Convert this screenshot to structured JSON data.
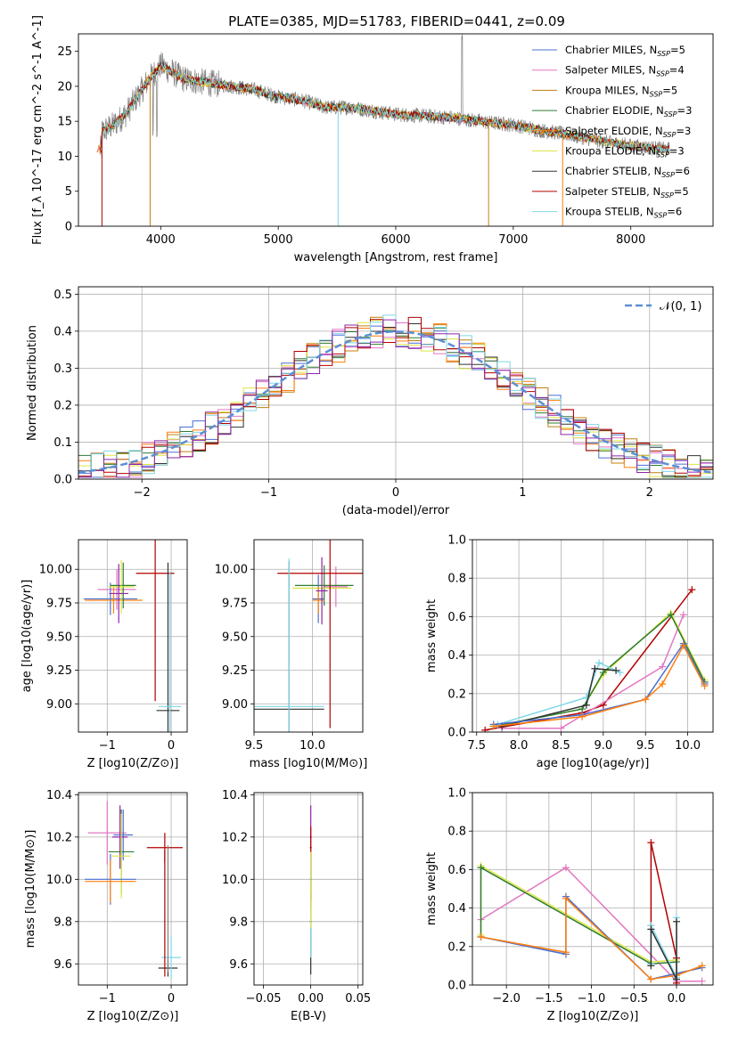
{
  "figure": {
    "title": "PLATE=0385, MJD=51783, FIBERID=0441, z=0.09"
  },
  "chart_data": [
    {
      "id": "spectrum",
      "type": "line",
      "xlabel": "wavelength [Angstrom, rest frame]",
      "ylabel": "Flux [f_λ 10^-17 erg cm^-2 s^-1 A^-1]",
      "xlim": [
        3300,
        8700
      ],
      "ylim": [
        0,
        27.5
      ],
      "xticks": [
        "4000",
        "5000",
        "6000",
        "7000",
        "8000"
      ],
      "yticks": [
        "0",
        "5",
        "10",
        "15",
        "20",
        "25"
      ],
      "legend_position": "top-right",
      "series": [
        {
          "name": "Chabrier MILES, N_SSP=5",
          "color": "#4a6fd1"
        },
        {
          "name": "Salpeter MILES, N_SSP=4",
          "color": "#e377c2"
        },
        {
          "name": "Kroupa MILES, N_SSP=5",
          "color": "#c08010"
        },
        {
          "name": "Chabrier ELODIE, N_SSP=3",
          "color": "#2e7d32"
        },
        {
          "name": "Salpeter ELODIE, N_SSP=3",
          "color": "#ff7f0e"
        },
        {
          "name": "Kroupa ELODIE, N_SSP=3",
          "color": "#dde644"
        },
        {
          "name": "Chabrier STELIB, N_SSP=6",
          "color": "#333333"
        },
        {
          "name": "Salpeter STELIB, N_SSP=5",
          "color": "#b30000"
        },
        {
          "name": "Kroupa STELIB, N_SSP=6",
          "color": "#7fd8e8"
        }
      ],
      "observed_color": "#808080",
      "continuum": [
        [
          3500,
          13.5
        ],
        [
          3600,
          14.5
        ],
        [
          3700,
          16
        ],
        [
          3800,
          18.5
        ],
        [
          3900,
          21
        ],
        [
          4000,
          23
        ],
        [
          4100,
          22
        ],
        [
          4200,
          21
        ],
        [
          4400,
          20.5
        ],
        [
          4600,
          20
        ],
        [
          4800,
          19.5
        ],
        [
          5000,
          18.5
        ],
        [
          5200,
          18
        ],
        [
          5400,
          17
        ],
        [
          5600,
          17
        ],
        [
          5800,
          16.5
        ],
        [
          6000,
          16
        ],
        [
          6200,
          15.8
        ],
        [
          6500,
          15.5
        ],
        [
          6800,
          14.8
        ],
        [
          7000,
          14.5
        ],
        [
          7200,
          13.8
        ],
        [
          7500,
          13
        ],
        [
          7800,
          12
        ],
        [
          8000,
          11.5
        ],
        [
          8300,
          11
        ]
      ]
    },
    {
      "id": "residuals",
      "type": "histogram",
      "xlabel": "(data-model)/error",
      "ylabel": "Normed distribution",
      "xlim": [
        -2.5,
        2.5
      ],
      "ylim": [
        0,
        0.52
      ],
      "xticks": [
        "−2",
        "−1",
        "0",
        "1",
        "2"
      ],
      "yticks": [
        "0.0",
        "0.1",
        "0.2",
        "0.3",
        "0.4",
        "0.5"
      ],
      "legend": [
        "𝒩(0, 1)"
      ],
      "legend_position": "top-right",
      "gaussian_color": "#5b8fd4",
      "hist_colors": [
        "#4a6fd1",
        "#e377c2",
        "#c08010",
        "#2e7d32",
        "#ff7f0e",
        "#dde644",
        "#333333",
        "#b30000",
        "#7fd8e8",
        "#8e24aa"
      ]
    },
    {
      "id": "age-vs-Z",
      "type": "errorbar",
      "xlabel": "Z [log10(Z/Z⊙)]",
      "ylabel": "age [log10(age/yr)]",
      "xlim": [
        -1.45,
        0.25
      ],
      "ylim": [
        8.79,
        10.22
      ],
      "xticks": [
        "−1",
        "0"
      ],
      "yticks": [
        "9.00",
        "9.25",
        "9.50",
        "9.75",
        "10.00"
      ],
      "points": [
        {
          "x": -0.85,
          "y": 9.85,
          "xerr": 0.3,
          "yerr": 0.15,
          "color": "#e377c2"
        },
        {
          "x": -0.95,
          "y": 9.78,
          "xerr": 0.42,
          "yerr": 0.12,
          "color": "#4a6fd1"
        },
        {
          "x": -0.9,
          "y": 9.77,
          "xerr": 0.45,
          "yerr": 0.1,
          "color": "#ff7f0e"
        },
        {
          "x": -0.75,
          "y": 9.88,
          "xerr": 0.2,
          "yerr": 0.17,
          "color": "#2e7d32"
        },
        {
          "x": -0.78,
          "y": 9.87,
          "xerr": 0.2,
          "yerr": 0.2,
          "color": "#dde644"
        },
        {
          "x": -0.82,
          "y": 9.82,
          "xerr": 0.15,
          "yerr": 0.22,
          "color": "#8e24aa"
        },
        {
          "x": -0.25,
          "y": 9.97,
          "xerr": 0.3,
          "yerr": 0.95,
          "color": "#b30000"
        },
        {
          "x": -0.05,
          "y": 8.95,
          "xerr": 0.18,
          "yerr": 1.1,
          "color": "#333333"
        },
        {
          "x": -0.02,
          "y": 8.98,
          "xerr": 0.18,
          "yerr": 1.0,
          "color": "#7fd8e8"
        }
      ]
    },
    {
      "id": "age-vs-mass",
      "type": "errorbar",
      "xlabel": "mass [log10(M/M⊙)]",
      "ylabel": "",
      "xlim": [
        9.5,
        10.43
      ],
      "ylim": [
        8.79,
        10.22
      ],
      "xticks": [
        "9.5",
        "10.0"
      ],
      "yticks": [
        "9.00",
        "9.25",
        "9.50",
        "9.75",
        "10.00"
      ],
      "points": [
        {
          "x": 10.2,
          "y": 9.87,
          "xerr": 0.1,
          "yerr": 0.15,
          "color": "#e377c2"
        },
        {
          "x": 10.1,
          "y": 9.88,
          "xerr": 0.25,
          "yerr": 0.15,
          "color": "#2e7d32"
        },
        {
          "x": 10.08,
          "y": 9.86,
          "xerr": 0.25,
          "yerr": 0.2,
          "color": "#dde644"
        },
        {
          "x": 10.05,
          "y": 9.78,
          "xerr": 0.05,
          "yerr": 0.18,
          "color": "#4a6fd1"
        },
        {
          "x": 10.05,
          "y": 9.77,
          "xerr": 0.05,
          "yerr": 0.1,
          "color": "#ff7f0e"
        },
        {
          "x": 10.08,
          "y": 9.84,
          "xerr": 0.05,
          "yerr": 0.25,
          "color": "#8e24aa"
        },
        {
          "x": 10.15,
          "y": 9.97,
          "xerr": 0.45,
          "yerr": 1.15,
          "color": "#b30000"
        },
        {
          "x": 9.8,
          "y": 8.96,
          "xerr": 0.3,
          "yerr": 1.1,
          "color": "#333333"
        },
        {
          "x": 9.8,
          "y": 8.98,
          "xerr": 0.3,
          "yerr": 1.1,
          "color": "#7fd8e8"
        }
      ]
    },
    {
      "id": "weight-vs-age",
      "type": "line",
      "xlabel": "age [log10(age/yr)]",
      "ylabel": "mass weight",
      "xlim": [
        7.45,
        10.3
      ],
      "ylim": [
        0,
        1.0
      ],
      "xticks": [
        "7.5",
        "8.0",
        "8.5",
        "9.0",
        "9.5",
        "10.0"
      ],
      "yticks": [
        "0.0",
        "0.2",
        "0.4",
        "0.6",
        "0.8",
        "1.0"
      ],
      "grid": true,
      "series": [
        {
          "color": "#b30000",
          "x": [
            7.6,
            8.75,
            9.0,
            10.05
          ],
          "y": [
            0.01,
            0.1,
            0.14,
            0.74
          ]
        },
        {
          "color": "#e377c2",
          "x": [
            7.8,
            8.5,
            9.7,
            9.95
          ],
          "y": [
            0.02,
            0.02,
            0.34,
            0.61
          ]
        },
        {
          "color": "#dde644",
          "x": [
            7.7,
            8.75,
            9.0,
            9.8,
            10.2
          ],
          "y": [
            0.03,
            0.12,
            0.3,
            0.62,
            0.27
          ]
        },
        {
          "color": "#2e7d32",
          "x": [
            7.7,
            8.75,
            9.0,
            9.8,
            10.2
          ],
          "y": [
            0.03,
            0.12,
            0.31,
            0.61,
            0.26
          ]
        },
        {
          "color": "#7fd8e8",
          "x": [
            7.75,
            8.8,
            8.95,
            9.2
          ],
          "y": [
            0.04,
            0.18,
            0.36,
            0.31
          ]
        },
        {
          "color": "#333333",
          "x": [
            7.8,
            8.8,
            8.9,
            9.15
          ],
          "y": [
            0.03,
            0.14,
            0.33,
            0.32
          ]
        },
        {
          "color": "#4a6fd1",
          "x": [
            7.7,
            8.75,
            9.5,
            9.95,
            10.2
          ],
          "y": [
            0.04,
            0.09,
            0.17,
            0.46,
            0.25
          ]
        },
        {
          "color": "#ff7f0e",
          "x": [
            7.7,
            8.75,
            9.5,
            9.7,
            9.95,
            10.2
          ],
          "y": [
            0.03,
            0.08,
            0.17,
            0.25,
            0.45,
            0.24
          ]
        }
      ]
    },
    {
      "id": "mass-vs-Z",
      "type": "errorbar",
      "xlabel": "Z [log10(Z/Z⊙)]",
      "ylabel": "mass [log10(M/M⊙)]",
      "xlim": [
        -1.45,
        0.25
      ],
      "ylim": [
        9.5,
        10.41
      ],
      "xticks": [
        "−1",
        "0"
      ],
      "yticks": [
        "9.6",
        "9.8",
        "10.0",
        "10.2",
        "10.4"
      ],
      "points": [
        {
          "x": -1.0,
          "y": 10.22,
          "xerr": 0.3,
          "yerr": 0.15,
          "color": "#e377c2"
        },
        {
          "x": -0.75,
          "y": 10.21,
          "xerr": 0.15,
          "yerr": 0.12,
          "color": "#4a6fd1"
        },
        {
          "x": -0.8,
          "y": 10.2,
          "xerr": 0.12,
          "yerr": 0.15,
          "color": "#8e24aa"
        },
        {
          "x": -0.78,
          "y": 10.13,
          "xerr": 0.2,
          "yerr": 0.2,
          "color": "#2e7d32"
        },
        {
          "x": -0.78,
          "y": 10.11,
          "xerr": 0.15,
          "yerr": 0.2,
          "color": "#dde644"
        },
        {
          "x": -0.95,
          "y": 10.0,
          "xerr": 0.4,
          "yerr": 0.12,
          "color": "#4a6fd1"
        },
        {
          "x": -0.95,
          "y": 9.99,
          "xerr": 0.4,
          "yerr": 0.1,
          "color": "#ff7f0e"
        },
        {
          "x": -0.1,
          "y": 10.15,
          "xerr": 0.28,
          "yerr": 0.07,
          "color": "#b30000"
        },
        {
          "x": -0.05,
          "y": 9.58,
          "xerr": 0.15,
          "yerr": 0.04,
          "color": "#333333"
        },
        {
          "x": 0.0,
          "y": 9.63,
          "xerr": 0.15,
          "yerr": 0.1,
          "color": "#7fd8e8"
        },
        {
          "x": -0.1,
          "y": 9.84,
          "xerr": 0.0,
          "yerr": 0.3,
          "color": "#b30000"
        },
        {
          "x": -0.05,
          "y": 9.86,
          "xerr": 0.0,
          "yerr": 0.3,
          "color": "#808080"
        }
      ]
    },
    {
      "id": "mass-vs-EBV",
      "type": "errorbar",
      "xlabel": "E(B-V)",
      "ylabel": "",
      "xlim": [
        -0.06,
        0.055
      ],
      "ylim": [
        9.5,
        10.41
      ],
      "xticks": [
        "−0.05",
        "0.00",
        "0.05"
      ],
      "yticks": [
        "9.6",
        "9.8",
        "10.0",
        "10.2",
        "10.4"
      ],
      "points": [
        {
          "x": 0.0,
          "y": 10.2,
          "xerr": 0.001,
          "yerr": 0.15,
          "color": "#8e24aa"
        },
        {
          "x": 0.0,
          "y": 10.15,
          "xerr": 0.001,
          "yerr": 0.1,
          "color": "#b30000"
        },
        {
          "x": 0.0,
          "y": 10.0,
          "xerr": 0.001,
          "yerr": 0.1,
          "color": "#4a6fd1"
        },
        {
          "x": 0.0,
          "y": 9.8,
          "xerr": 0.001,
          "yerr": 0.25,
          "color": "#333333"
        },
        {
          "x": 0.0,
          "y": 9.75,
          "xerr": 0.001,
          "yerr": 0.12,
          "color": "#7fd8e8"
        },
        {
          "x": 0.0,
          "y": 9.95,
          "xerr": 0.001,
          "yerr": 0.18,
          "color": "#dde644"
        }
      ]
    },
    {
      "id": "weight-vs-Z",
      "type": "line",
      "xlabel": "Z [log10(Z/Z⊙)]",
      "ylabel": "mass weight",
      "xlim": [
        -2.4,
        0.43
      ],
      "ylim": [
        0,
        1.0
      ],
      "xticks": [
        "−2.0",
        "−1.5",
        "−1.0",
        "−0.5",
        "0.0"
      ],
      "yticks": [
        "0.0",
        "0.2",
        "0.4",
        "0.6",
        "0.8",
        "1.0"
      ],
      "grid": true,
      "series": [
        {
          "color": "#e377c2",
          "x": [
            -2.3,
            -1.3,
            0.0,
            0.3
          ],
          "y": [
            0.34,
            0.61,
            0.02,
            0.02
          ]
        },
        {
          "color": "#dde644",
          "x": [
            -2.3,
            -2.3,
            -0.3,
            0.0
          ],
          "y": [
            0.26,
            0.62,
            0.12,
            0.13
          ]
        },
        {
          "color": "#2e7d32",
          "x": [
            -2.3,
            -2.3,
            -0.3,
            0.0
          ],
          "y": [
            0.25,
            0.61,
            0.11,
            0.12
          ]
        },
        {
          "color": "#4a6fd1",
          "x": [
            -2.3,
            -1.3,
            -1.3,
            -0.3,
            0.0,
            0.3
          ],
          "y": [
            0.25,
            0.16,
            0.46,
            0.03,
            0.06,
            0.09
          ]
        },
        {
          "color": "#ff7f0e",
          "x": [
            -2.3,
            -1.3,
            -1.3,
            -0.3,
            0.0,
            0.3
          ],
          "y": [
            0.25,
            0.17,
            0.45,
            0.03,
            0.05,
            0.1
          ]
        },
        {
          "color": "#b30000",
          "x": [
            -0.3,
            -0.3,
            0.0,
            0.0
          ],
          "y": [
            0.31,
            0.74,
            0.14,
            0.01
          ]
        },
        {
          "color": "#7fd8e8",
          "x": [
            -0.3,
            -0.3,
            0.0,
            0.0
          ],
          "y": [
            0.11,
            0.31,
            0.04,
            0.35
          ]
        },
        {
          "color": "#333333",
          "x": [
            -0.3,
            -0.3,
            0.0,
            0.0
          ],
          "y": [
            0.1,
            0.29,
            0.03,
            0.33
          ]
        }
      ]
    }
  ]
}
